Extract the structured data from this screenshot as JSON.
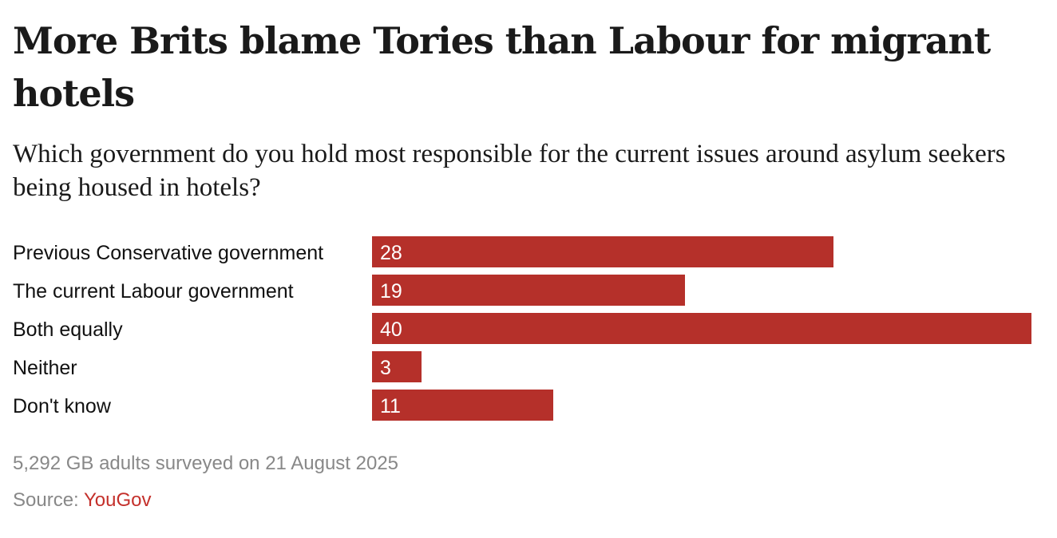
{
  "title": "More Brits blame Tories than Labour for migrant hotels",
  "subtitle": "Which government do you hold most responsible for the current issues around asylum seekers being housed in hotels?",
  "note": "5,292 GB adults surveyed on 21 August 2025",
  "source": {
    "label": "Source: ",
    "name": "YouGov"
  },
  "colors": {
    "bar": "#b5302a",
    "source_link": "#c4302b",
    "muted_text": "#888888"
  },
  "chart_data": {
    "type": "bar",
    "orientation": "horizontal",
    "title": "More Brits blame Tories than Labour for migrant hotels",
    "subtitle": "Which government do you hold most responsible for the current issues around asylum seekers being housed in hotels?",
    "categories": [
      "Previous Conservative government",
      "The current Labour government",
      "Both equally",
      "Neither",
      "Don't know"
    ],
    "values": [
      28,
      19,
      40,
      3,
      11
    ],
    "value_labels": [
      "28",
      "19",
      "40",
      "3",
      "11"
    ],
    "xlim": [
      0,
      40
    ],
    "grid": false,
    "legend": "none"
  }
}
